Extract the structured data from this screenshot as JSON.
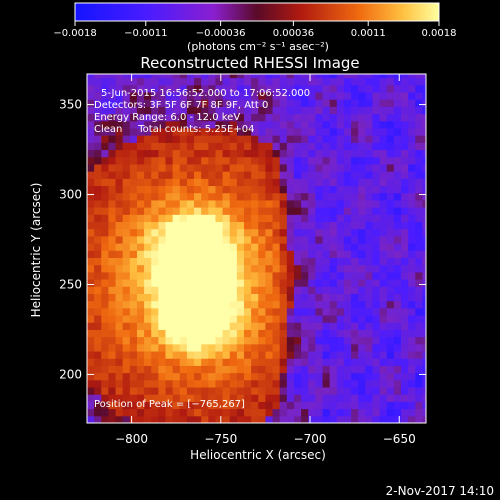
{
  "chart_data": {
    "type": "heatmap",
    "title": "Reconstructed RHESSI Image",
    "xlabel": "Heliocentric X (arcsec)",
    "ylabel": "Heliocentric Y (arcsec)",
    "xlim": [
      -825,
      -635
    ],
    "ylim": [
      173,
      367
    ],
    "x_ticks": [
      -800,
      -750,
      -700,
      -650
    ],
    "y_ticks": [
      200,
      250,
      300,
      350
    ],
    "x_tick_labels": [
      "−800",
      "−750",
      "−700",
      "−650"
    ],
    "y_tick_labels": [
      "200",
      "250",
      "300",
      "350"
    ],
    "colorbar": {
      "range": [
        -0.0018,
        0.0018
      ],
      "ticks": [
        -0.0018,
        -0.0011,
        -0.00036,
        0.00036,
        0.0011,
        0.0018
      ],
      "tick_labels": [
        "−0.0018",
        "−0.0011",
        "−0.00036",
        "0.00036",
        "0.0011",
        "0.0018"
      ],
      "units": "(photons cm⁻² s⁻¹ asec⁻²)"
    },
    "annotations": [
      "5-Jun-2015 16:56:52.000 to 17:06:52.000",
      "Detectors: 3F 5F 6F 7F 8F 9F, Att 0",
      "Energy Range: 6.0 - 12.0 keV",
      "Clean     Total counts: 5.25E+04"
    ],
    "peak_label": "Position of Peak = [−765,267]",
    "peaks": [
      {
        "x": -765,
        "y": 267,
        "value": 0.0018
      },
      {
        "x": -763,
        "y": 236,
        "value": 0.0017
      }
    ],
    "emission_region": {
      "x": [
        -825,
        -720
      ],
      "y": [
        173,
        367
      ]
    },
    "timestamp": "2-Nov-2017 14:10"
  }
}
